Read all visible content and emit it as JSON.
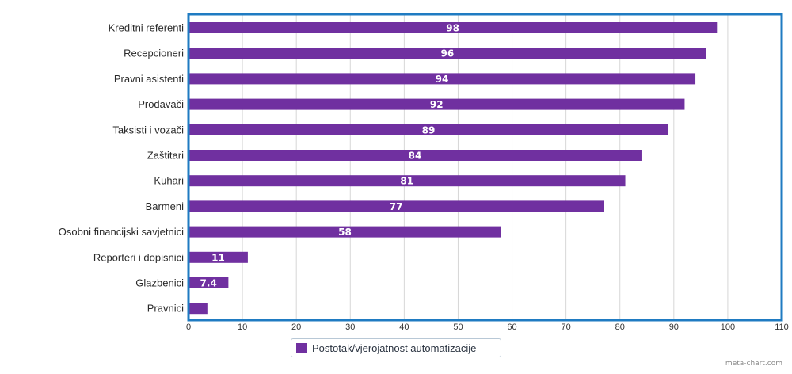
{
  "chart_data": {
    "type": "bar",
    "orientation": "horizontal",
    "categories": [
      "Kreditni referenti",
      "Recepcioneri",
      "Pravni asistenti",
      "Prodavači",
      "Taksisti i vozači",
      "Zaštitari",
      "Kuhari",
      "Barmeni",
      "Osobni financijski savjetnici",
      "Reporteri i dopisnici",
      "Glazbenici",
      "Pravnici"
    ],
    "series": [
      {
        "name": "Postotak/vjerojatnost automatizacije",
        "values": [
          98,
          96,
          94,
          92,
          89,
          84,
          81,
          77,
          58,
          11,
          7.4,
          3.5
        ],
        "data_labels": [
          "98",
          "96",
          "94",
          "92",
          "89",
          "84",
          "81",
          "77",
          "58",
          "11",
          "7.4",
          ""
        ]
      }
    ],
    "xlim": [
      0,
      110
    ],
    "xticks": [
      "0",
      "10",
      "20",
      "30",
      "40",
      "50",
      "60",
      "70",
      "80",
      "90",
      "100",
      "110"
    ],
    "grid": true,
    "legend_position": "bottom",
    "colors": {
      "bar": "#7030a0",
      "frame": "#1f7bc2",
      "grid": "#d6d6d6"
    }
  },
  "credit": "meta-chart.com"
}
